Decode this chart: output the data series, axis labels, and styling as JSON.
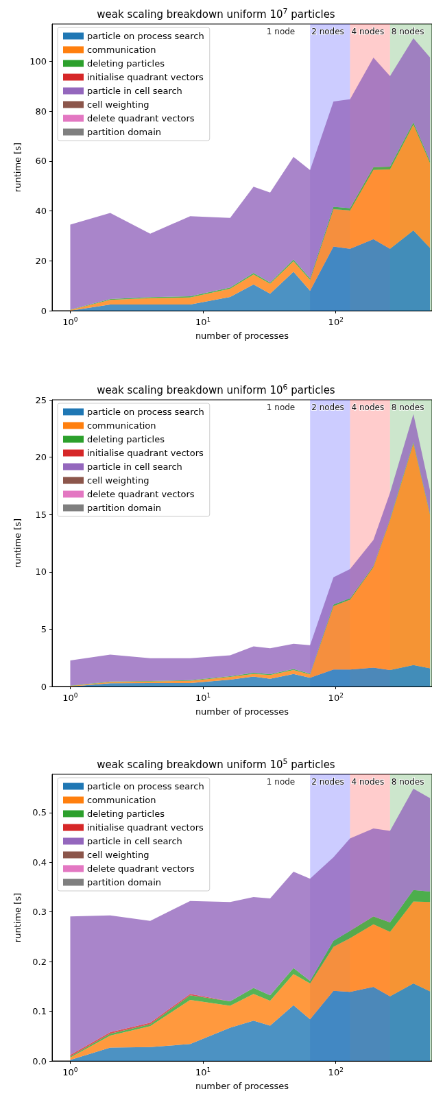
{
  "chart_data": [
    {
      "type": "area",
      "stacked": true,
      "title": "weak scaling breakdown uniform 10$^{7}$ particles",
      "xlabel": "number of processes",
      "ylabel": "runtime [s]",
      "legend": "top left",
      "x": [
        1,
        2,
        4,
        8,
        16,
        24,
        32,
        48,
        64,
        96,
        128,
        192,
        256,
        384,
        512
      ],
      "xlim": [
        0.73,
        530
      ],
      "xticks": [
        {
          "value": 1,
          "label": "10$^{0}$"
        },
        {
          "value": 10,
          "label": "10$^{1}$"
        },
        {
          "value": 100,
          "label": "10$^{2}$"
        }
      ],
      "log": "x",
      "ylim": [
        0,
        115
      ],
      "yticks": [
        0,
        20,
        40,
        60,
        80,
        100
      ],
      "series": [
        {
          "name": "particle on process search",
          "color": "#1f77b4",
          "values": [
            0,
            2.5,
            2.5,
            2.5,
            5.5,
            10.5,
            6.8,
            15.6,
            8,
            25.7,
            24.8,
            28.7,
            24.8,
            32.2,
            25.2
          ]
        },
        {
          "name": "communication",
          "color": "#ff7f0e",
          "values": [
            0.3,
            1.8,
            2.5,
            2.8,
            3.3,
            4,
            4,
            4.2,
            4.3,
            15,
            15.4,
            27.8,
            31.9,
            42.5,
            34
          ]
        },
        {
          "name": "deleting particles",
          "color": "#2ca02c",
          "values": [
            0.1,
            0.4,
            0.4,
            0.5,
            0.5,
            0.6,
            0.5,
            0.7,
            0.6,
            1,
            0.9,
            1.1,
            1.1,
            0.8,
            0.8
          ]
        },
        {
          "name": "initialise quadrant vectors",
          "color": "#d62728",
          "values": [
            null,
            null,
            null,
            null,
            null,
            null,
            null,
            null,
            null,
            null,
            null,
            null,
            null,
            null,
            null
          ]
        },
        {
          "name": "particle in cell search",
          "color": "#9467bd",
          "values": [
            34.1,
            34.5,
            25.5,
            32.1,
            27.9,
            34.6,
            36.1,
            41.2,
            43.5,
            42.2,
            43.7,
            43.9,
            36.3,
            33.8,
            41.6
          ]
        },
        {
          "name": "cell weighting",
          "color": "#8c564b",
          "values": [
            null,
            null,
            null,
            null,
            null,
            null,
            null,
            null,
            null,
            null,
            null,
            null,
            null,
            null,
            null
          ]
        },
        {
          "name": "delete quadrant vectors",
          "color": "#e377c2",
          "values": [
            null,
            null,
            null,
            null,
            null,
            null,
            null,
            null,
            null,
            null,
            null,
            null,
            null,
            null,
            null
          ]
        },
        {
          "name": "partition domain",
          "color": "#7f7f7f",
          "values": [
            null,
            null,
            null,
            null,
            null,
            null,
            null,
            null,
            null,
            null,
            null,
            null,
            null,
            null,
            null
          ]
        }
      ],
      "bands": [
        {
          "axis": "x",
          "from": 64,
          "to": 128,
          "label": "2 nodes",
          "color": "#0000ff"
        },
        {
          "axis": "x",
          "from": 128,
          "to": 256,
          "label": "4 nodes",
          "color": "#ff0000"
        },
        {
          "axis": "x",
          "from": 256,
          "to": 530,
          "label": "8 nodes",
          "color": "#008000"
        }
      ],
      "annotations": [
        "1 node"
      ]
    },
    {
      "type": "area",
      "stacked": true,
      "title": "weak scaling breakdown uniform 10$^{6}$ particles",
      "xlabel": "number of processes",
      "ylabel": "runtime [s]",
      "legend": "top left",
      "x": [
        1,
        2,
        4,
        8,
        16,
        24,
        32,
        48,
        64,
        96,
        128,
        192,
        256,
        384,
        512
      ],
      "xlim": [
        0.73,
        530
      ],
      "xticks": [
        {
          "value": 1,
          "label": "10$^{0}$"
        },
        {
          "value": 10,
          "label": "10$^{1}$"
        },
        {
          "value": 100,
          "label": "10$^{2}$"
        }
      ],
      "log": "x",
      "ylim": [
        0,
        25
      ],
      "yticks": [
        0,
        5,
        10,
        15,
        20,
        25
      ],
      "series": [
        {
          "name": "particle on process search",
          "color": "#1f77b4",
          "values": [
            0,
            0.28,
            0.3,
            0.3,
            0.6,
            0.87,
            0.67,
            1.09,
            0.76,
            1.48,
            1.48,
            1.65,
            1.43,
            1.87,
            1.59
          ]
        },
        {
          "name": "communication",
          "color": "#ff7f0e",
          "values": [
            0.05,
            0.11,
            0.13,
            0.2,
            0.23,
            0.22,
            0.33,
            0.34,
            0.28,
            5.54,
            6.09,
            8.75,
            13.07,
            19.33,
            13.37
          ]
        },
        {
          "name": "deleting particles",
          "color": "#2ca02c",
          "values": [
            0.03,
            0.05,
            0.05,
            0.05,
            0.07,
            0.1,
            0.08,
            0.1,
            0.08,
            0.12,
            0.12,
            0.1,
            0.1,
            0.1,
            0.1
          ]
        },
        {
          "name": "initialise quadrant vectors",
          "color": "#d62728",
          "values": [
            null,
            null,
            null,
            null,
            null,
            null,
            null,
            null,
            null,
            null,
            null,
            null,
            null,
            null,
            null
          ]
        },
        {
          "name": "particle in cell search",
          "color": "#9467bd",
          "values": [
            2.2,
            2.34,
            1.98,
            1.91,
            1.82,
            2.31,
            2.25,
            2.19,
            2.49,
            2.38,
            2.55,
            2.28,
            2.3,
            2.46,
            2.04
          ]
        },
        {
          "name": "cell weighting",
          "color": "#8c564b",
          "values": [
            null,
            null,
            null,
            null,
            null,
            null,
            null,
            null,
            null,
            null,
            null,
            null,
            null,
            null,
            null
          ]
        },
        {
          "name": "delete quadrant vectors",
          "color": "#e377c2",
          "values": [
            null,
            null,
            null,
            null,
            null,
            null,
            null,
            null,
            null,
            null,
            null,
            null,
            null,
            null,
            null
          ]
        },
        {
          "name": "partition domain",
          "color": "#7f7f7f",
          "values": [
            null,
            null,
            null,
            null,
            null,
            null,
            null,
            null,
            null,
            null,
            null,
            null,
            null,
            null,
            null
          ]
        }
      ],
      "bands": [
        {
          "axis": "x",
          "from": 64,
          "to": 128,
          "label": "2 nodes",
          "color": "#0000ff"
        },
        {
          "axis": "x",
          "from": 128,
          "to": 256,
          "label": "4 nodes",
          "color": "#ff0000"
        },
        {
          "axis": "x",
          "from": 256,
          "to": 530,
          "label": "8 nodes",
          "color": "#008000"
        }
      ],
      "annotations": [
        "1 node"
      ]
    },
    {
      "type": "area",
      "stacked": true,
      "title": "weak scaling breakdown uniform 10$^{5}$ particles",
      "xlabel": "number of processes",
      "ylabel": "runtime [s]",
      "legend": "top left",
      "x": [
        1,
        2,
        4,
        8,
        16,
        24,
        32,
        48,
        64,
        96,
        128,
        192,
        256,
        384,
        512
      ],
      "xlim": [
        0.73,
        530
      ],
      "xticks": [
        {
          "value": 1,
          "label": "10$^{0}$"
        },
        {
          "value": 10,
          "label": "10$^{1}$"
        },
        {
          "value": 100,
          "label": "10$^{2}$"
        }
      ],
      "log": "x",
      "ylim": [
        0,
        0.577
      ],
      "yticks": [
        {
          "value": 0,
          "label": "0.0"
        },
        0.1,
        0.2,
        0.3,
        0.4,
        0.5
      ],
      "series": [
        {
          "name": "particle on process search",
          "color": "#1f77b4",
          "values": [
            0.002,
            0.027,
            0.028,
            0.034,
            0.067,
            0.081,
            0.071,
            0.112,
            0.084,
            0.141,
            0.139,
            0.149,
            0.13,
            0.156,
            0.14
          ]
        },
        {
          "name": "communication",
          "color": "#ff7f0e",
          "values": [
            0.005,
            0.024,
            0.042,
            0.089,
            0.044,
            0.054,
            0.05,
            0.063,
            0.072,
            0.089,
            0.108,
            0.126,
            0.13,
            0.165,
            0.18
          ]
        },
        {
          "name": "deleting particles",
          "color": "#2ca02c",
          "values": [
            0.002,
            0.004,
            0.004,
            0.009,
            0.009,
            0.012,
            0.011,
            0.012,
            0.005,
            0.012,
            0.015,
            0.016,
            0.019,
            0.023,
            0.021
          ]
        },
        {
          "name": "initialise quadrant vectors",
          "color": "#d62728",
          "values": [
            0.003,
            0.003,
            0.003,
            0.003,
            0,
            0,
            0,
            0,
            0,
            0,
            0,
            0,
            0,
            0,
            0
          ]
        },
        {
          "name": "particle in cell search",
          "color": "#9467bd",
          "values": [
            0.279,
            0.235,
            0.205,
            0.187,
            0.2,
            0.183,
            0.195,
            0.194,
            0.206,
            0.168,
            0.186,
            0.177,
            0.184,
            0.204,
            0.188
          ]
        },
        {
          "name": "cell weighting",
          "color": "#8c564b",
          "values": [
            null,
            null,
            null,
            null,
            null,
            null,
            null,
            null,
            null,
            null,
            null,
            null,
            null,
            null,
            null
          ]
        },
        {
          "name": "delete quadrant vectors",
          "color": "#e377c2",
          "values": [
            null,
            null,
            null,
            null,
            null,
            null,
            null,
            null,
            null,
            null,
            null,
            null,
            null,
            null,
            null
          ]
        },
        {
          "name": "partition domain",
          "color": "#7f7f7f",
          "values": [
            null,
            null,
            null,
            null,
            null,
            null,
            null,
            null,
            null,
            null,
            null,
            null,
            null,
            null,
            null
          ]
        }
      ],
      "bands": [
        {
          "axis": "x",
          "from": 64,
          "to": 128,
          "label": "2 nodes",
          "color": "#0000ff"
        },
        {
          "axis": "x",
          "from": 128,
          "to": 256,
          "label": "4 nodes",
          "color": "#ff0000"
        },
        {
          "axis": "x",
          "from": 256,
          "to": 530,
          "label": "8 nodes",
          "color": "#008000"
        }
      ],
      "annotations": [
        "1 node"
      ]
    }
  ]
}
